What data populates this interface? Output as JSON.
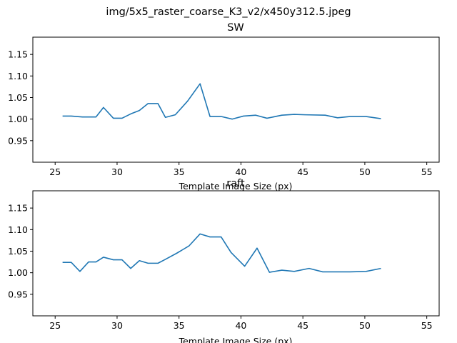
{
  "figure": {
    "suptitle": "img/5x5_raster_coarse_K3_v2/x450y312.5.jpeg"
  },
  "colors": {
    "line": "#1f77b4",
    "axes": "#000000",
    "background": "#ffffff"
  },
  "chart_data": [
    {
      "type": "line",
      "title": "SW",
      "xlabel": "Template Image Size (px)",
      "ylabel": "",
      "xlim": [
        23.2,
        56.0
      ],
      "ylim": [
        0.9,
        1.19
      ],
      "xticks": [
        25,
        30,
        35,
        40,
        45,
        50,
        55
      ],
      "yticks": [
        0.95,
        1.0,
        1.05,
        1.1,
        1.15
      ],
      "ytick_labels": [
        "0.95",
        "1.00",
        "1.05",
        "1.10",
        "1.15"
      ],
      "grid": false,
      "series": [
        {
          "x": [
            25.6,
            26.3,
            27.2,
            28.3,
            28.9,
            29.7,
            30.4,
            31.1,
            31.8,
            32.5,
            33.3,
            33.9,
            34.7,
            35.7,
            36.7,
            37.5,
            38.4,
            39.3,
            40.2,
            41.2,
            42.1,
            43.3,
            44.3,
            45.2,
            46.8,
            47.8,
            48.8,
            50.1,
            51.3
          ],
          "y": [
            1.007,
            1.007,
            1.005,
            1.005,
            1.027,
            1.002,
            1.002,
            1.012,
            1.02,
            1.036,
            1.036,
            1.004,
            1.01,
            1.042,
            1.082,
            1.006,
            1.006,
            1.0,
            1.007,
            1.009,
            1.002,
            1.009,
            1.011,
            1.01,
            1.009,
            1.003,
            1.006,
            1.006,
            1.001
          ]
        }
      ]
    },
    {
      "type": "line",
      "title": "raft",
      "xlabel": "Template Image Size (px)",
      "ylabel": "",
      "xlim": [
        23.2,
        56.0
      ],
      "ylim": [
        0.9,
        1.19
      ],
      "xticks": [
        25,
        30,
        35,
        40,
        45,
        50,
        55
      ],
      "yticks": [
        0.95,
        1.0,
        1.05,
        1.1,
        1.15
      ],
      "ytick_labels": [
        "0.95",
        "1.00",
        "1.05",
        "1.10",
        "1.15"
      ],
      "grid": false,
      "series": [
        {
          "x": [
            25.6,
            26.3,
            27.0,
            27.7,
            28.3,
            28.9,
            29.7,
            30.4,
            31.1,
            31.8,
            32.5,
            33.3,
            33.9,
            34.8,
            35.8,
            36.7,
            37.5,
            38.4,
            39.2,
            40.3,
            41.3,
            42.3,
            43.3,
            44.3,
            45.5,
            46.6,
            47.8,
            48.8,
            50.1,
            51.3
          ],
          "y": [
            1.024,
            1.024,
            1.003,
            1.025,
            1.025,
            1.036,
            1.03,
            1.03,
            1.01,
            1.028,
            1.022,
            1.022,
            1.031,
            1.045,
            1.062,
            1.09,
            1.083,
            1.083,
            1.047,
            1.015,
            1.057,
            1.001,
            1.006,
            1.003,
            1.01,
            1.002,
            1.002,
            1.002,
            1.003,
            1.01
          ]
        }
      ]
    }
  ]
}
